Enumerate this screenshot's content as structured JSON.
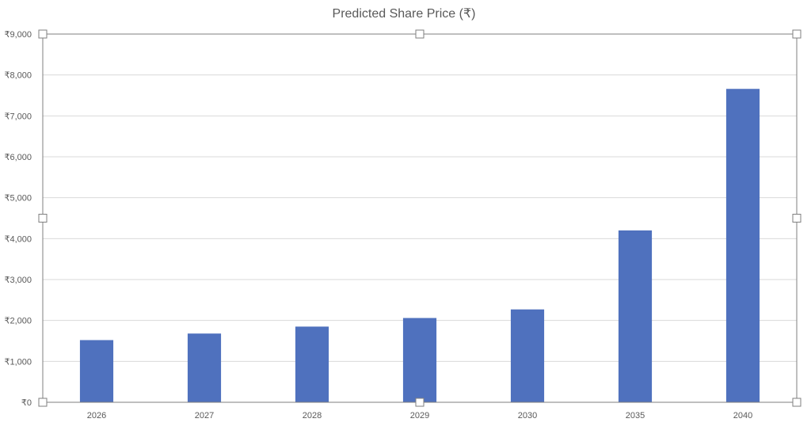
{
  "chart_data": {
    "type": "bar",
    "title": "Predicted Share Price (₹)",
    "xlabel": "",
    "ylabel": "",
    "categories": [
      "2026",
      "2027",
      "2028",
      "2029",
      "2030",
      "2035",
      "2040"
    ],
    "values": [
      1520,
      1680,
      1850,
      2060,
      2270,
      4200,
      7660
    ],
    "ylim": [
      0,
      9000
    ],
    "yticks": [
      0,
      1000,
      2000,
      3000,
      4000,
      5000,
      6000,
      7000,
      8000,
      9000
    ],
    "ytick_labels": [
      "₹0",
      "₹1,000",
      "₹2,000",
      "₹3,000",
      "₹4,000",
      "₹5,000",
      "₹6,000",
      "₹7,000",
      "₹8,000",
      "₹9,000"
    ],
    "grid": true,
    "legend": "none",
    "bar_color": "#4f71be",
    "selected": true
  }
}
